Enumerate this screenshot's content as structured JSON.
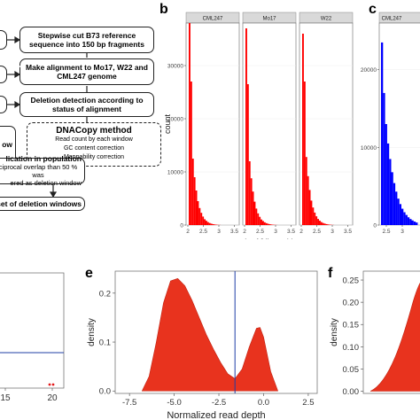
{
  "flowchart": {
    "step1": "Stepwise cut B73 reference sequence into 150 bp fragments",
    "step2": "Make alignment to Mo17, W22 and CML247 genome",
    "step3": "Deletion detection according to status of alignment",
    "partial_left": "ow",
    "dnacopy_title": "DNACopy method",
    "dnacopy_lines": [
      "Read count by each window",
      "GC content correction",
      "Mappability correction"
    ],
    "step5_line1": "lication in population",
    "step5_line2": "ciprocal overlap than 50 % was",
    "step5_line3": "ered as deletion window",
    "step6": "set of deletion windows"
  },
  "panels": {
    "b": "b",
    "c": "c",
    "e": "e",
    "f": "f"
  },
  "chart_data": [
    {
      "type": "bar",
      "panel": "b",
      "facets": [
        "CML247",
        "Mo17",
        "W22"
      ],
      "xlabel": "log10(Length)",
      "ylabel": "count",
      "xticks": [
        2,
        2.5,
        3,
        3.5
      ],
      "yticks": [
        0,
        10000,
        20000,
        30000
      ],
      "ylim": [
        0,
        38000
      ],
      "color": "#ff0000",
      "series": [
        {
          "name": "CML247",
          "values": [
            38000,
            27000,
            12500,
            9000,
            6500,
            4500,
            3200,
            2300,
            1600,
            1100,
            800,
            550,
            380,
            260,
            170,
            110,
            70,
            40,
            20
          ]
        },
        {
          "name": "Mo17",
          "values": [
            37000,
            26500,
            12000,
            8800,
            6300,
            4400,
            3100,
            2200,
            1550,
            1050,
            760,
            520,
            360,
            240,
            160,
            100,
            65,
            38,
            18
          ]
        },
        {
          "name": "W22",
          "values": [
            36000,
            27000,
            12800,
            9200,
            6600,
            4600,
            3300,
            2350,
            1650,
            1150,
            820,
            560,
            390,
            270,
            175,
            115,
            72,
            42,
            20
          ]
        }
      ]
    },
    {
      "type": "bar",
      "panel": "c",
      "facets": [
        "CML247"
      ],
      "ylabel": "",
      "xticks": [
        2.5,
        3
      ],
      "yticks": [
        0,
        10000,
        20000
      ],
      "ylim": [
        0,
        26000
      ],
      "color": "#0000ff",
      "values": [
        23500,
        17000,
        13000,
        10500,
        8500,
        6800,
        5400,
        4300,
        3400,
        2700,
        2100,
        1650,
        1300,
        1000,
        780,
        600,
        450,
        330
      ]
    },
    {
      "type": "area",
      "panel": "e",
      "xlabel": "Normalized read depth",
      "ylabel": "density",
      "xticks": [
        -7.5,
        -5.0,
        -2.5,
        0.0,
        2.5
      ],
      "yticks": [
        0.0,
        0.1,
        0.2
      ],
      "xlim": [
        -8.3,
        3.0
      ],
      "ylim": [
        -0.005,
        0.245
      ],
      "vline": -1.6,
      "color": "#e8331e",
      "x": [
        -6.8,
        -6.4,
        -6.0,
        -5.6,
        -5.2,
        -4.8,
        -4.4,
        -4.0,
        -3.6,
        -3.2,
        -2.8,
        -2.4,
        -2.0,
        -1.6,
        -1.2,
        -0.8,
        -0.4,
        -0.2,
        0.0,
        0.4,
        0.8
      ],
      "y": [
        0.0,
        0.03,
        0.1,
        0.18,
        0.225,
        0.23,
        0.215,
        0.185,
        0.15,
        0.115,
        0.085,
        0.058,
        0.035,
        0.025,
        0.045,
        0.09,
        0.128,
        0.13,
        0.11,
        0.04,
        0.0
      ]
    },
    {
      "type": "area",
      "panel": "f",
      "ylabel": "density",
      "yticks": [
        0.0,
        0.05,
        0.1,
        0.15,
        0.2,
        0.25
      ],
      "ylim": [
        -0.005,
        0.27
      ],
      "color": "#e8331e"
    }
  ],
  "panel_d_partial": {
    "xticks": [
      15,
      20
    ],
    "colors": {
      "hline": "#1f3fa6",
      "points": "#e31a1c"
    }
  }
}
